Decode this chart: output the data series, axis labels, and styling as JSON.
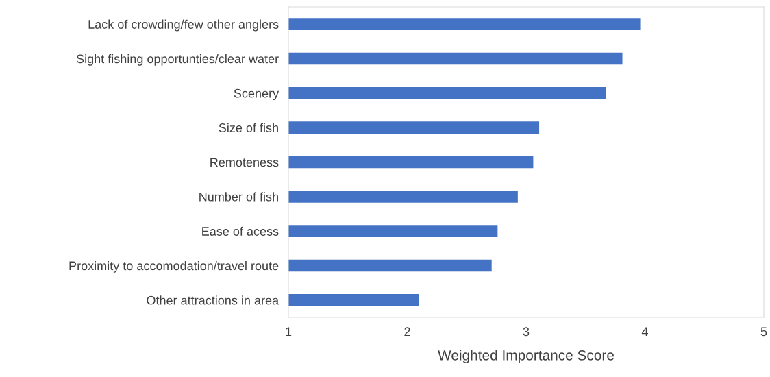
{
  "chart_data": {
    "type": "bar",
    "orientation": "horizontal",
    "xlabel": "Weighted Importance Score",
    "categories": [
      "Lack of crowding/few other anglers",
      "Sight fishing opportunties/clear water",
      "Scenery",
      "Size of fish",
      "Remoteness",
      "Number of fish",
      "Ease of acess",
      "Proximity to accomodation/travel route",
      "Other attractions in area"
    ],
    "values": [
      3.96,
      3.81,
      3.67,
      3.11,
      3.06,
      2.93,
      2.76,
      2.71,
      2.1
    ],
    "color": "#4472c4",
    "xlim": [
      1,
      5
    ],
    "xticks": [
      1,
      2,
      3,
      4,
      5
    ],
    "grid": false,
    "legend": false
  }
}
